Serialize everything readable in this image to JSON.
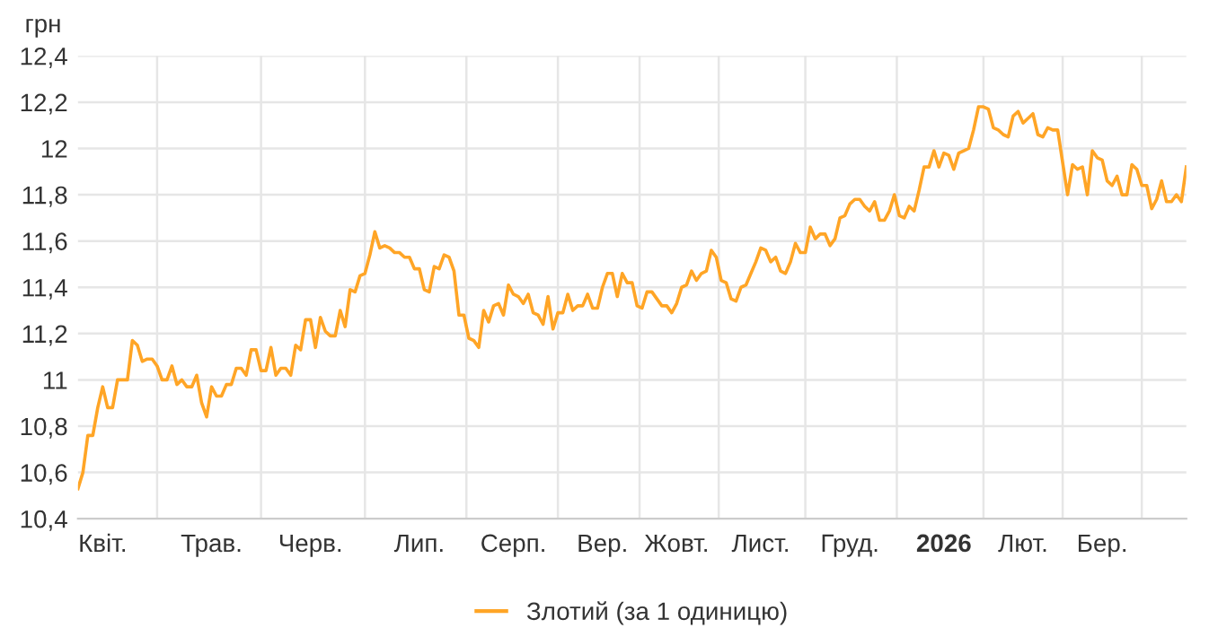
{
  "chart_data": {
    "type": "line",
    "ylabel": "грн",
    "categories": [
      null,
      null,
      null,
      null,
      null,
      "Квіт.",
      null,
      null,
      null,
      null,
      null,
      null,
      null,
      null,
      null,
      null,
      null,
      null,
      null,
      null,
      null,
      null,
      null,
      null,
      null,
      null,
      null,
      "Трав.",
      null,
      null,
      null,
      null,
      null,
      null,
      null,
      null,
      null,
      null,
      null,
      null,
      null,
      null,
      null,
      null,
      null,
      null,
      null,
      "Черв.",
      null,
      null,
      null,
      null,
      null,
      null,
      null,
      null,
      null,
      null,
      null,
      null,
      null,
      null,
      null,
      null,
      null,
      null,
      null,
      null,
      null,
      "Лип.",
      null,
      null,
      null,
      null,
      null,
      null,
      null,
      null,
      null,
      null,
      null,
      null,
      null,
      null,
      null,
      null,
      null,
      null,
      "Серп.",
      null,
      null,
      null,
      null,
      null,
      null,
      null,
      null,
      null,
      null,
      null,
      null,
      null,
      null,
      null,
      null,
      null,
      "Вер.",
      null,
      null,
      null,
      null,
      null,
      null,
      null,
      null,
      null,
      null,
      null,
      null,
      null,
      null,
      "Жовт.",
      null,
      null,
      null,
      null,
      null,
      null,
      null,
      null,
      null,
      null,
      null,
      null,
      null,
      null,
      null,
      null,
      "Лист.",
      null,
      null,
      null,
      null,
      null,
      null,
      null,
      null,
      null,
      null,
      null,
      null,
      null,
      null,
      null,
      null,
      null,
      "Груд.",
      null,
      null,
      null,
      null,
      null,
      null,
      null,
      null,
      null,
      null,
      null,
      null,
      null,
      null,
      null,
      null,
      null,
      null,
      "2026",
      null,
      null,
      null,
      null,
      null,
      null,
      null,
      null,
      null,
      null,
      null,
      null,
      null,
      null,
      null,
      "Лют.",
      null,
      null,
      null,
      null,
      null,
      null,
      null,
      null,
      null,
      null,
      null,
      null,
      null,
      null,
      null,
      "Бер.",
      null,
      null,
      null,
      null,
      null,
      null,
      null,
      null,
      null,
      null,
      null,
      null,
      null,
      null,
      null,
      null,
      null
    ],
    "ylim": [
      10.4,
      12.4
    ],
    "yticks": [
      {
        "value": 10.4,
        "label": "10,4"
      },
      {
        "value": 10.6,
        "label": "10,6"
      },
      {
        "value": 10.8,
        "label": "10,8"
      },
      11,
      {
        "value": 11.2,
        "label": "11,2"
      },
      {
        "value": 11.4,
        "label": "11,4"
      },
      {
        "value": 11.6,
        "label": "11,6"
      },
      {
        "value": 11.8,
        "label": "11,8"
      },
      12,
      {
        "value": 12.2,
        "label": "12,2"
      },
      {
        "value": 12.4,
        "label": "12,4"
      }
    ],
    "grid": true,
    "legend": "bottom",
    "marker": "none",
    "line_style": "solid",
    "series": [
      {
        "name": "Злотий (за 1 одиницю)",
        "color": "#ffa526",
        "values": [
          10.53,
          10.6,
          10.76,
          10.76,
          10.88,
          10.97,
          10.88,
          10.88,
          11.0,
          11.0,
          11.0,
          11.17,
          11.15,
          11.08,
          11.09,
          11.09,
          11.06,
          11.0,
          11.0,
          11.06,
          10.98,
          11.0,
          10.97,
          10.97,
          11.02,
          10.9,
          10.84,
          10.97,
          10.93,
          10.93,
          10.98,
          10.98,
          11.05,
          11.05,
          11.02,
          11.13,
          11.13,
          11.04,
          11.04,
          11.14,
          11.02,
          11.05,
          11.05,
          11.02,
          11.15,
          11.13,
          11.26,
          11.26,
          11.14,
          11.27,
          11.21,
          11.19,
          11.19,
          11.3,
          11.23,
          11.39,
          11.38,
          11.45,
          11.46,
          11.54,
          11.64,
          11.57,
          11.58,
          11.57,
          11.55,
          11.55,
          11.53,
          11.53,
          11.48,
          11.48,
          11.39,
          11.38,
          11.49,
          11.48,
          11.54,
          11.53,
          11.47,
          11.28,
          11.28,
          11.18,
          11.17,
          11.14,
          11.3,
          11.25,
          11.32,
          11.33,
          11.28,
          11.41,
          11.37,
          11.36,
          11.33,
          11.37,
          11.29,
          11.28,
          11.24,
          11.36,
          11.22,
          11.29,
          11.29,
          11.37,
          11.3,
          11.32,
          11.32,
          11.37,
          11.31,
          11.31,
          11.4,
          11.46,
          11.46,
          11.36,
          11.46,
          11.42,
          11.42,
          11.32,
          11.31,
          11.38,
          11.38,
          11.35,
          11.32,
          11.32,
          11.29,
          11.33,
          11.4,
          11.41,
          11.47,
          11.43,
          11.46,
          11.47,
          11.56,
          11.53,
          11.43,
          11.42,
          11.35,
          11.34,
          11.4,
          11.41,
          11.46,
          11.51,
          11.57,
          11.56,
          11.51,
          11.53,
          11.47,
          11.46,
          11.51,
          11.59,
          11.55,
          11.55,
          11.66,
          11.61,
          11.63,
          11.63,
          11.58,
          11.61,
          11.7,
          11.71,
          11.76,
          11.78,
          11.78,
          11.75,
          11.73,
          11.77,
          11.69,
          11.69,
          11.73,
          11.8,
          11.71,
          11.7,
          11.75,
          11.73,
          11.82,
          11.92,
          11.92,
          11.99,
          11.92,
          11.98,
          11.97,
          11.91,
          11.98,
          11.99,
          12.0,
          12.08,
          12.18,
          12.18,
          12.17,
          12.09,
          12.08,
          12.06,
          12.05,
          12.14,
          12.16,
          12.11,
          12.13,
          12.15,
          12.06,
          12.05,
          12.09,
          12.08,
          12.08,
          11.94,
          11.8,
          11.93,
          11.91,
          11.92,
          11.8,
          11.99,
          11.96,
          11.95,
          11.86,
          11.84,
          11.88,
          11.8,
          11.8,
          11.93,
          11.91,
          11.84,
          11.84,
          11.74,
          11.78,
          11.86,
          11.77,
          11.77,
          11.8,
          11.77,
          11.92
        ]
      }
    ]
  }
}
